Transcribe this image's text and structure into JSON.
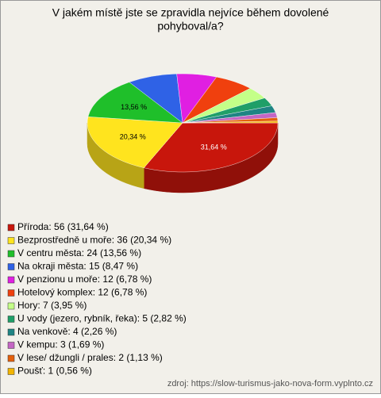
{
  "chart_data": {
    "type": "pie3d",
    "title": [
      "V jakém místě jste se zpravidla nejvíce během dovolené",
      "pohyboval/a?"
    ],
    "categories": [
      "Příroda: 56 (31,64 %)",
      "Bezprostředně u moře: 36 (20,34 %)",
      "V centru města: 24 (13,56 %)",
      "Na okraji města: 15 (8,47 %)",
      "V penzionu u moře: 12 (6,78 %)",
      "Hotelový komplex: 12 (6,78 %)",
      "Hory: 7 (3,95 %)",
      "U vody (jezero, rybník, řeka): 5 (2,82 %)",
      "Na venkově: 4 (2,26 %)",
      "V kempu: 3 (1,69 %)",
      "V lese/ džungli / prales: 2 (1,13 %)",
      "Poušť: 1 (0,56 %)"
    ],
    "values": [
      31.64,
      20.34,
      13.56,
      8.47,
      6.78,
      6.78,
      3.95,
      2.82,
      2.26,
      1.69,
      1.13,
      0.56
    ],
    "value_labels": [
      "31,64 %",
      "20,34 %",
      "13,56 %",
      null,
      null,
      null,
      null,
      null,
      null,
      null,
      null,
      null
    ],
    "colors": [
      "#c8160c",
      "#ffe41e",
      "#1fbf2a",
      "#2f62e6",
      "#e01fe2",
      "#f0400e",
      "#c4ff88",
      "#1f9f68",
      "#1f8484",
      "#c466c4",
      "#e4600c",
      "#f2b400"
    ],
    "source": "zdroj: https://slow-turismus-jako-nova-form.vyplnto.cz"
  }
}
